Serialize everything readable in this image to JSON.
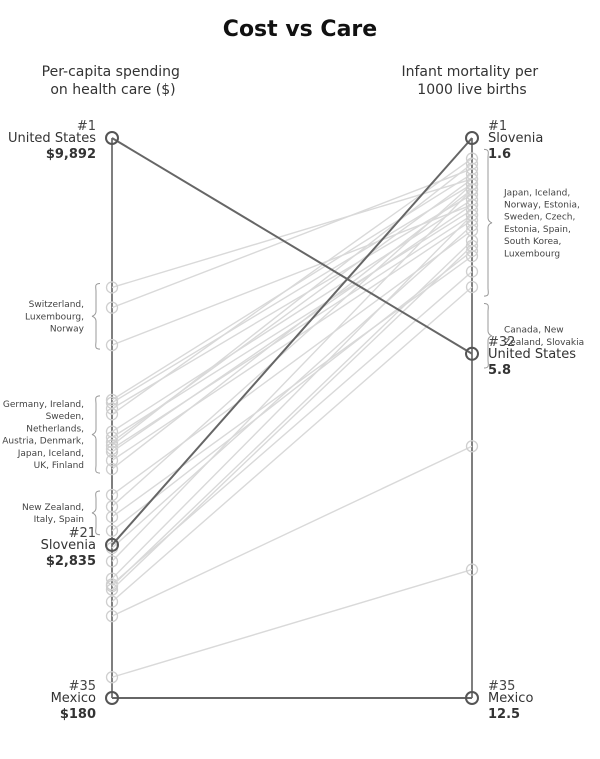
{
  "chart_data": {
    "type": "slope",
    "title": "Cost vs Care",
    "left_axis": {
      "title_lines": [
        "Per-capita spending",
        "on health care ($)"
      ]
    },
    "right_axis": {
      "title_lines": [
        "Infant mortality per",
        "1000 live births"
      ]
    },
    "highlighted": [
      {
        "name": "United States",
        "left_rank": "#1",
        "left_value": "$9,892",
        "right_rank": "#32",
        "right_value": "5.8",
        "spending": 9892,
        "mortality": 5.8
      },
      {
        "name": "Slovenia",
        "left_rank": "#21",
        "left_value": "$2,835",
        "right_rank": "#1",
        "right_value": "1.6",
        "spending": 2835,
        "mortality": 1.6
      },
      {
        "name": "Mexico",
        "left_rank": "#35",
        "left_value": "$180",
        "right_rank": "#35",
        "right_value": "12.5",
        "spending": 180,
        "mortality": 12.5
      }
    ],
    "left_groups": [
      {
        "lines": [
          "Switzerland,",
          "Luxembourg,",
          "Norway"
        ]
      },
      {
        "lines": [
          "Germany, Ireland,",
          "Sweden,",
          "Netherlands,",
          "Austria, Denmark,",
          "Japan, Iceland,",
          "UK, Finland"
        ]
      },
      {
        "lines": [
          "New Zealand,",
          "Italy, Spain"
        ]
      }
    ],
    "right_groups": [
      {
        "lines": [
          "Japan, Iceland,",
          "Norway, Estonia,",
          "Sweden, Czech,",
          "Estonia, Spain,",
          "South Korea,",
          "Luxembourg"
        ]
      },
      {
        "lines": [
          "Canada, New",
          "Zealand, Slovakia"
        ]
      }
    ],
    "background_pairs": [
      [
        7300,
        2.4
      ],
      [
        6950,
        2.2
      ],
      [
        6300,
        2.9
      ],
      [
        5350,
        2.3
      ],
      [
        5300,
        2.5
      ],
      [
        5200,
        2.7
      ],
      [
        5100,
        2.0
      ],
      [
        4800,
        2.8
      ],
      [
        4700,
        3.0
      ],
      [
        4620,
        2.4
      ],
      [
        4560,
        2.1
      ],
      [
        4500,
        3.1
      ],
      [
        4450,
        2.9
      ],
      [
        4300,
        3.2
      ],
      [
        4150,
        2.6
      ],
      [
        3700,
        3.4
      ],
      [
        3500,
        2.5
      ],
      [
        3320,
        3.9
      ],
      [
        3080,
        3.8
      ],
      [
        2780,
        3.3
      ],
      [
        2550,
        2.6
      ],
      [
        2250,
        3.1
      ],
      [
        2150,
        4.2
      ],
      [
        2120,
        3.6
      ],
      [
        2060,
        3.7
      ],
      [
        1850,
        4.5
      ],
      [
        1600,
        7.6
      ],
      [
        540,
        10.0
      ]
    ]
  }
}
